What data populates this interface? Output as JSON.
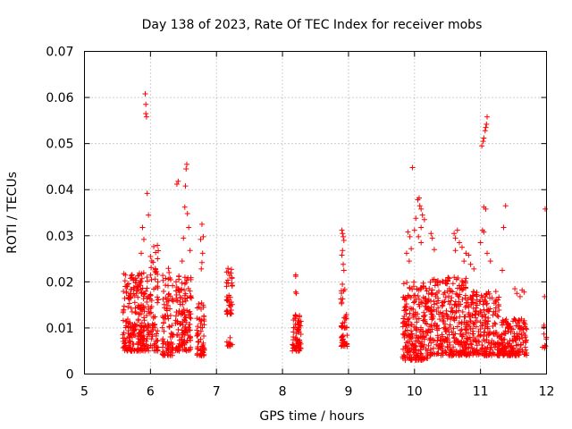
{
  "chart_data": {
    "type": "scatter",
    "title": "Day 138 of 2023, Rate Of TEC Index for receiver mobs",
    "xlabel": "GPS time / hours",
    "ylabel": "ROTI / TECUs",
    "xlim": [
      5,
      12
    ],
    "ylim": [
      0,
      0.07
    ],
    "x_ticks": [
      "5",
      "6",
      "7",
      "8",
      "9",
      "10",
      "11",
      "12"
    ],
    "y_ticks": [
      "0",
      "0.01",
      "0.02",
      "0.03",
      "0.04",
      "0.05",
      "0.06",
      "0.07"
    ],
    "grid": true,
    "marker": "plus",
    "color": "#ff0000",
    "clusters": [
      {
        "x_range": [
          5.58,
          5.98
        ],
        "y_range": [
          0.005,
          0.022
        ],
        "n": 260
      },
      {
        "x_range": [
          5.98,
          6.12
        ],
        "y_range": [
          0.005,
          0.028
        ],
        "n": 70
      },
      {
        "x_range": [
          6.18,
          6.35
        ],
        "y_range": [
          0.004,
          0.024
        ],
        "n": 90
      },
      {
        "x_range": [
          6.38,
          6.62
        ],
        "y_range": [
          0.005,
          0.022
        ],
        "n": 140
      },
      {
        "x_range": [
          6.7,
          6.82
        ],
        "y_range": [
          0.004,
          0.016
        ],
        "n": 60
      },
      {
        "x_range": [
          7.15,
          7.24
        ],
        "y_range": [
          0.013,
          0.023
        ],
        "n": 40
      },
      {
        "x_range": [
          7.15,
          7.24
        ],
        "y_range": [
          0.006,
          0.008
        ],
        "n": 12
      },
      {
        "x_range": [
          8.15,
          8.28
        ],
        "y_range": [
          0.005,
          0.014
        ],
        "n": 70
      },
      {
        "x_range": [
          8.88,
          8.98
        ],
        "y_range": [
          0.006,
          0.009
        ],
        "n": 25
      },
      {
        "x_range": [
          8.88,
          8.98
        ],
        "y_range": [
          0.01,
          0.02
        ],
        "n": 25
      },
      {
        "x_range": [
          9.82,
          10.2
        ],
        "y_range": [
          0.003,
          0.02
        ],
        "n": 230
      },
      {
        "x_range": [
          10.2,
          10.8
        ],
        "y_range": [
          0.004,
          0.021
        ],
        "n": 320
      },
      {
        "x_range": [
          10.8,
          11.3
        ],
        "y_range": [
          0.004,
          0.018
        ],
        "n": 240
      },
      {
        "x_range": [
          11.3,
          11.7
        ],
        "y_range": [
          0.004,
          0.012
        ],
        "n": 170
      },
      {
        "x_range": [
          11.92,
          12.0
        ],
        "y_range": [
          0.005,
          0.011
        ],
        "n": 8
      }
    ],
    "points": [
      [
        5.92,
        0.0608
      ],
      [
        5.93,
        0.0585
      ],
      [
        5.93,
        0.0565
      ],
      [
        5.94,
        0.0558
      ],
      [
        5.95,
        0.0392
      ],
      [
        5.97,
        0.0345
      ],
      [
        5.88,
        0.0318
      ],
      [
        5.9,
        0.0292
      ],
      [
        5.86,
        0.0262
      ],
      [
        6.0,
        0.0255
      ],
      [
        6.42,
        0.0418
      ],
      [
        6.4,
        0.0412
      ],
      [
        6.55,
        0.0455
      ],
      [
        6.54,
        0.0445
      ],
      [
        6.53,
        0.0408
      ],
      [
        6.52,
        0.0362
      ],
      [
        6.56,
        0.0348
      ],
      [
        6.58,
        0.0318
      ],
      [
        6.5,
        0.0295
      ],
      [
        6.6,
        0.0268
      ],
      [
        6.48,
        0.0245
      ],
      [
        6.78,
        0.0325
      ],
      [
        6.8,
        0.0298
      ],
      [
        6.76,
        0.0292
      ],
      [
        6.79,
        0.0262
      ],
      [
        6.78,
        0.0242
      ],
      [
        6.77,
        0.0228
      ],
      [
        8.2,
        0.0215
      ],
      [
        8.2,
        0.0212
      ],
      [
        8.2,
        0.0178
      ],
      [
        8.21,
        0.0175
      ],
      [
        8.9,
        0.0312
      ],
      [
        8.91,
        0.0305
      ],
      [
        8.92,
        0.0298
      ],
      [
        8.93,
        0.029
      ],
      [
        8.91,
        0.0268
      ],
      [
        8.9,
        0.0258
      ],
      [
        8.92,
        0.0238
      ],
      [
        8.93,
        0.0225
      ],
      [
        9.97,
        0.0448
      ],
      [
        9.9,
        0.0308
      ],
      [
        9.93,
        0.0298
      ],
      [
        9.95,
        0.0272
      ],
      [
        9.88,
        0.0262
      ],
      [
        9.92,
        0.0245
      ],
      [
        10.0,
        0.0312
      ],
      [
        10.02,
        0.0338
      ],
      [
        10.05,
        0.0378
      ],
      [
        10.07,
        0.0382
      ],
      [
        10.08,
        0.0365
      ],
      [
        10.1,
        0.0358
      ],
      [
        10.12,
        0.0345
      ],
      [
        10.15,
        0.0335
      ],
      [
        10.1,
        0.0318
      ],
      [
        10.06,
        0.0298
      ],
      [
        10.1,
        0.0285
      ],
      [
        10.25,
        0.0305
      ],
      [
        10.27,
        0.0295
      ],
      [
        10.3,
        0.027
      ],
      [
        10.6,
        0.0305
      ],
      [
        10.65,
        0.0312
      ],
      [
        10.62,
        0.0295
      ],
      [
        10.68,
        0.0285
      ],
      [
        10.62,
        0.0268
      ],
      [
        10.72,
        0.0275
      ],
      [
        10.78,
        0.0262
      ],
      [
        10.82,
        0.0258
      ],
      [
        10.75,
        0.0245
      ],
      [
        10.85,
        0.0238
      ],
      [
        10.9,
        0.0228
      ],
      [
        11.02,
        0.0495
      ],
      [
        11.04,
        0.0505
      ],
      [
        11.05,
        0.0512
      ],
      [
        11.07,
        0.0528
      ],
      [
        11.08,
        0.0535
      ],
      [
        11.09,
        0.0542
      ],
      [
        11.1,
        0.0558
      ],
      [
        11.05,
        0.0362
      ],
      [
        11.08,
        0.0358
      ],
      [
        11.03,
        0.0312
      ],
      [
        11.05,
        0.0308
      ],
      [
        11.0,
        0.0285
      ],
      [
        11.1,
        0.0262
      ],
      [
        11.15,
        0.0245
      ],
      [
        11.38,
        0.0365
      ],
      [
        11.35,
        0.0318
      ],
      [
        11.33,
        0.0225
      ],
      [
        11.52,
        0.0185
      ],
      [
        11.55,
        0.0175
      ],
      [
        11.6,
        0.0168
      ],
      [
        11.63,
        0.0182
      ],
      [
        11.66,
        0.0178
      ],
      [
        11.98,
        0.0358
      ],
      [
        11.97,
        0.0168
      ],
      [
        11.96,
        0.0102
      ]
    ]
  }
}
